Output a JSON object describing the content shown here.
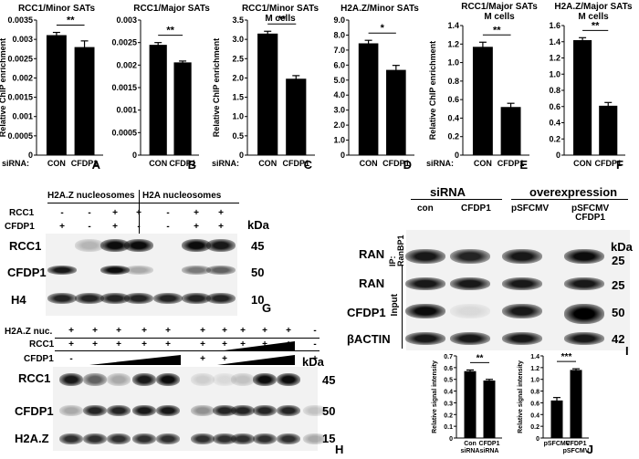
{
  "chart_data": [
    {
      "id": "A",
      "type": "bar",
      "title": "RCC1/Minor SATs",
      "ylabel": "Relative ChIP enrichment",
      "categories": [
        "CON",
        "CFDP1"
      ],
      "values": [
        0.00311,
        0.0028
      ],
      "errors": [
        7e-05,
        0.00016
      ],
      "ylim": [
        0,
        0.0035
      ],
      "yticks": [
        "0",
        "0.0005",
        "0.001",
        "0.0015",
        "0.002",
        "0.0025",
        "0.003",
        "0.0035"
      ],
      "sig": "**",
      "letter": "A",
      "row_label": "siRNA:"
    },
    {
      "id": "B",
      "type": "bar",
      "title": "RCC1/Major SATs",
      "ylabel": "",
      "categories": [
        "CON",
        "CFDP1"
      ],
      "values": [
        0.00245,
        0.00206
      ],
      "errors": [
        5e-05,
        3e-05
      ],
      "ylim": [
        0,
        0.003
      ],
      "yticks": [
        "0",
        "0.0005",
        "0.001",
        "0.0015",
        "0.002",
        "0.0025",
        "0.003"
      ],
      "sig": "**",
      "letter": "B",
      "row_label": ""
    },
    {
      "id": "C",
      "type": "bar",
      "title": "RCC1/Minor SATs\nM cells",
      "ylabel": "Relative ChIP enrichment",
      "categories": [
        "CON",
        "CFDP1"
      ],
      "values": [
        3.15,
        1.98
      ],
      "errors": [
        0.06,
        0.08
      ],
      "ylim": [
        0,
        3.5
      ],
      "yticks": [
        "0",
        "0.5",
        "1.0",
        "1.5",
        "2.0",
        "2.5",
        "3.0",
        "3.5"
      ],
      "sig": "**",
      "letter": "C",
      "row_label": "siRNA:"
    },
    {
      "id": "D",
      "type": "bar",
      "title": "H2A.Z/Minor SATs",
      "ylabel": "",
      "categories": [
        "CON",
        "CFDP1"
      ],
      "values": [
        7.45,
        5.68
      ],
      "errors": [
        0.2,
        0.3
      ],
      "ylim": [
        0,
        9.0
      ],
      "yticks": [
        "0",
        "1.0",
        "2.0",
        "3.0",
        "4.0",
        "5.0",
        "6.0",
        "7.0",
        "8.0",
        "9.0"
      ],
      "sig": "*",
      "letter": "D",
      "row_label": ""
    },
    {
      "id": "E",
      "type": "bar",
      "title": "RCC1/Major SATs\nM cells",
      "ylabel": "Relative ChIP enrichment",
      "categories": [
        "CON",
        "CFDP1"
      ],
      "values": [
        1.17,
        0.52
      ],
      "errors": [
        0.05,
        0.04
      ],
      "ylim": [
        0,
        1.4
      ],
      "yticks": [
        "0",
        "0.2",
        "0.4",
        "0.6",
        "0.8",
        "1.0",
        "1.2",
        "1.4"
      ],
      "sig": "**",
      "letter": "E",
      "row_label": "siRNA:"
    },
    {
      "id": "F",
      "type": "bar",
      "title": "H2A.Z/Major SATs\nM cells",
      "ylabel": "",
      "categories": [
        "CON",
        "CFDP1"
      ],
      "values": [
        1.42,
        0.61
      ],
      "errors": [
        0.03,
        0.04
      ],
      "ylim": [
        0,
        1.6
      ],
      "yticks": [
        "0",
        "0.2",
        "0.4",
        "0.6",
        "0.8",
        "1.0",
        "1.2",
        "1.4",
        "1.6"
      ],
      "sig": "**",
      "letter": "F",
      "row_label": ""
    },
    {
      "id": "I-left",
      "type": "bar",
      "title": "",
      "ylabel": "Relative signal intensity",
      "categories": [
        "Con\nsiRNA",
        "CFDP1\nsiRNA"
      ],
      "values": [
        0.57,
        0.49
      ],
      "errors": [
        0.01,
        0.01
      ],
      "ylim": [
        0,
        0.7
      ],
      "yticks": [
        "0",
        "0.1",
        "0.2",
        "0.3",
        "0.4",
        "0.5",
        "0.6",
        "0.7"
      ],
      "sig": "**",
      "letter": "",
      "row_label": ""
    },
    {
      "id": "J",
      "type": "bar",
      "title": "",
      "ylabel": "Relative signal intensity",
      "categories": [
        "pSFCMV",
        "CFDP1\npSFCMV"
      ],
      "values": [
        0.64,
        1.16
      ],
      "errors": [
        0.05,
        0.02
      ],
      "ylim": [
        0,
        1.4
      ],
      "yticks": [
        "0",
        "0.2",
        "0.4",
        "0.6",
        "0.8",
        "1.0",
        "1.2",
        "1.4"
      ],
      "sig": "***",
      "letter": "J",
      "row_label": ""
    }
  ],
  "panel_g": {
    "header_left": "H2A.Z nucleosomes",
    "header_right": "H2A nucleosomes",
    "row1_label": "RCC1",
    "row1_signs": [
      "-",
      "-",
      "+",
      "+",
      "-",
      "+",
      "+"
    ],
    "row2_label": "CFDP1",
    "row2_signs": [
      "+",
      "-",
      "+",
      "-",
      "-",
      "+",
      "+"
    ],
    "kda": "kDa",
    "bands": [
      {
        "label": "RCC1",
        "kda": "45"
      },
      {
        "label": "CFDP1",
        "kda": "50"
      },
      {
        "label": "H4",
        "kda": "10"
      }
    ],
    "letter": "G"
  },
  "panel_h": {
    "row0_label": "H2A.Z nuc.",
    "row0_signs": [
      "+",
      "+",
      "+",
      "+",
      "+",
      "+",
      "+",
      "+",
      "+",
      "+",
      "-"
    ],
    "row1_label": "RCC1",
    "row1_signs": [
      "+",
      "+",
      "+",
      "+",
      "+",
      "+",
      "+",
      "+",
      "+",
      "+",
      "-"
    ],
    "row2_label": "CFDP1",
    "row2_signs": [
      "-",
      "",
      "",
      "",
      "",
      "+",
      "+",
      "",
      "",
      "",
      "+"
    ],
    "kda": "kDa",
    "bands": [
      {
        "label": "RCC1",
        "kda": "45"
      },
      {
        "label": "CFDP1",
        "kda": "50"
      },
      {
        "label": "H2A.Z",
        "kda": "15"
      }
    ],
    "letter": "H"
  },
  "panel_i": {
    "header_sirna": "siRNA",
    "header_over": "overexpression",
    "cols": [
      "con",
      "CFDP1",
      "pSFCMV",
      "pSFCMV\nCFDP1"
    ],
    "ip_label": "IP:\nRanBP1",
    "input_label": "Input",
    "kda": "kDa",
    "bands": [
      {
        "label": "RAN",
        "kda": "25"
      },
      {
        "label": "RAN",
        "kda": "25"
      },
      {
        "label": "CFDP1",
        "kda": "50"
      },
      {
        "label": "βACTIN",
        "kda": "42"
      }
    ],
    "letter": "I"
  }
}
